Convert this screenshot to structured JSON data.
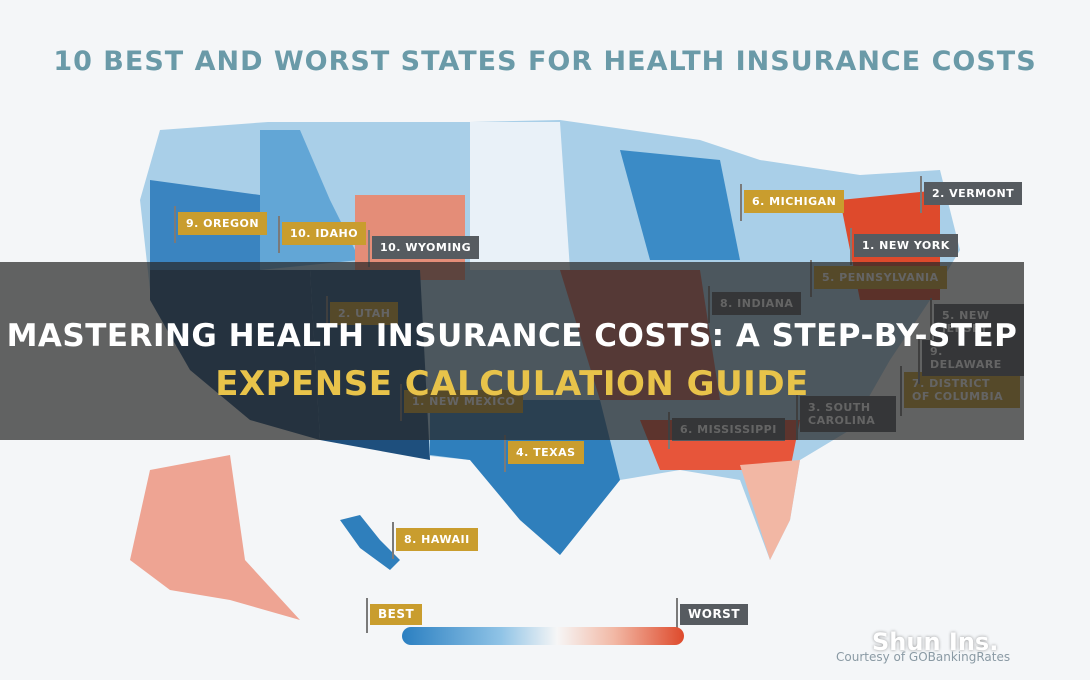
{
  "map": {
    "title": "10 BEST AND WORST STATES FOR HEALTH INSURANCE COSTS",
    "best_labels": [
      "9. OREGON",
      "10. IDAHO",
      "2. UTAH",
      "1. NEW MEXICO",
      "4. TEXAS",
      "8. HAWAII",
      "6. MICHIGAN",
      "5. PENNSYLVANIA",
      "7. DISTRICT OF COLUMBIA"
    ],
    "worst_labels": [
      "2. VERMONT",
      "1. NEW YORK",
      "10. WYOMING",
      "8. INDIANA",
      "5. NEW JERSEY",
      "9. DELAWARE",
      "3. SOUTH CAROLINA",
      "6. MISSISSIPPI"
    ],
    "legend": {
      "best": "BEST",
      "worst": "WORST"
    },
    "credit": "Courtesy of GOBankingRates"
  },
  "overlay": {
    "headline_line1": "MASTERING HEALTH INSURANCE COSTS: A STEP-BY-STEP",
    "headline_line2": "EXPENSE CALCULATION GUIDE",
    "watermark": "Shun Ins."
  }
}
